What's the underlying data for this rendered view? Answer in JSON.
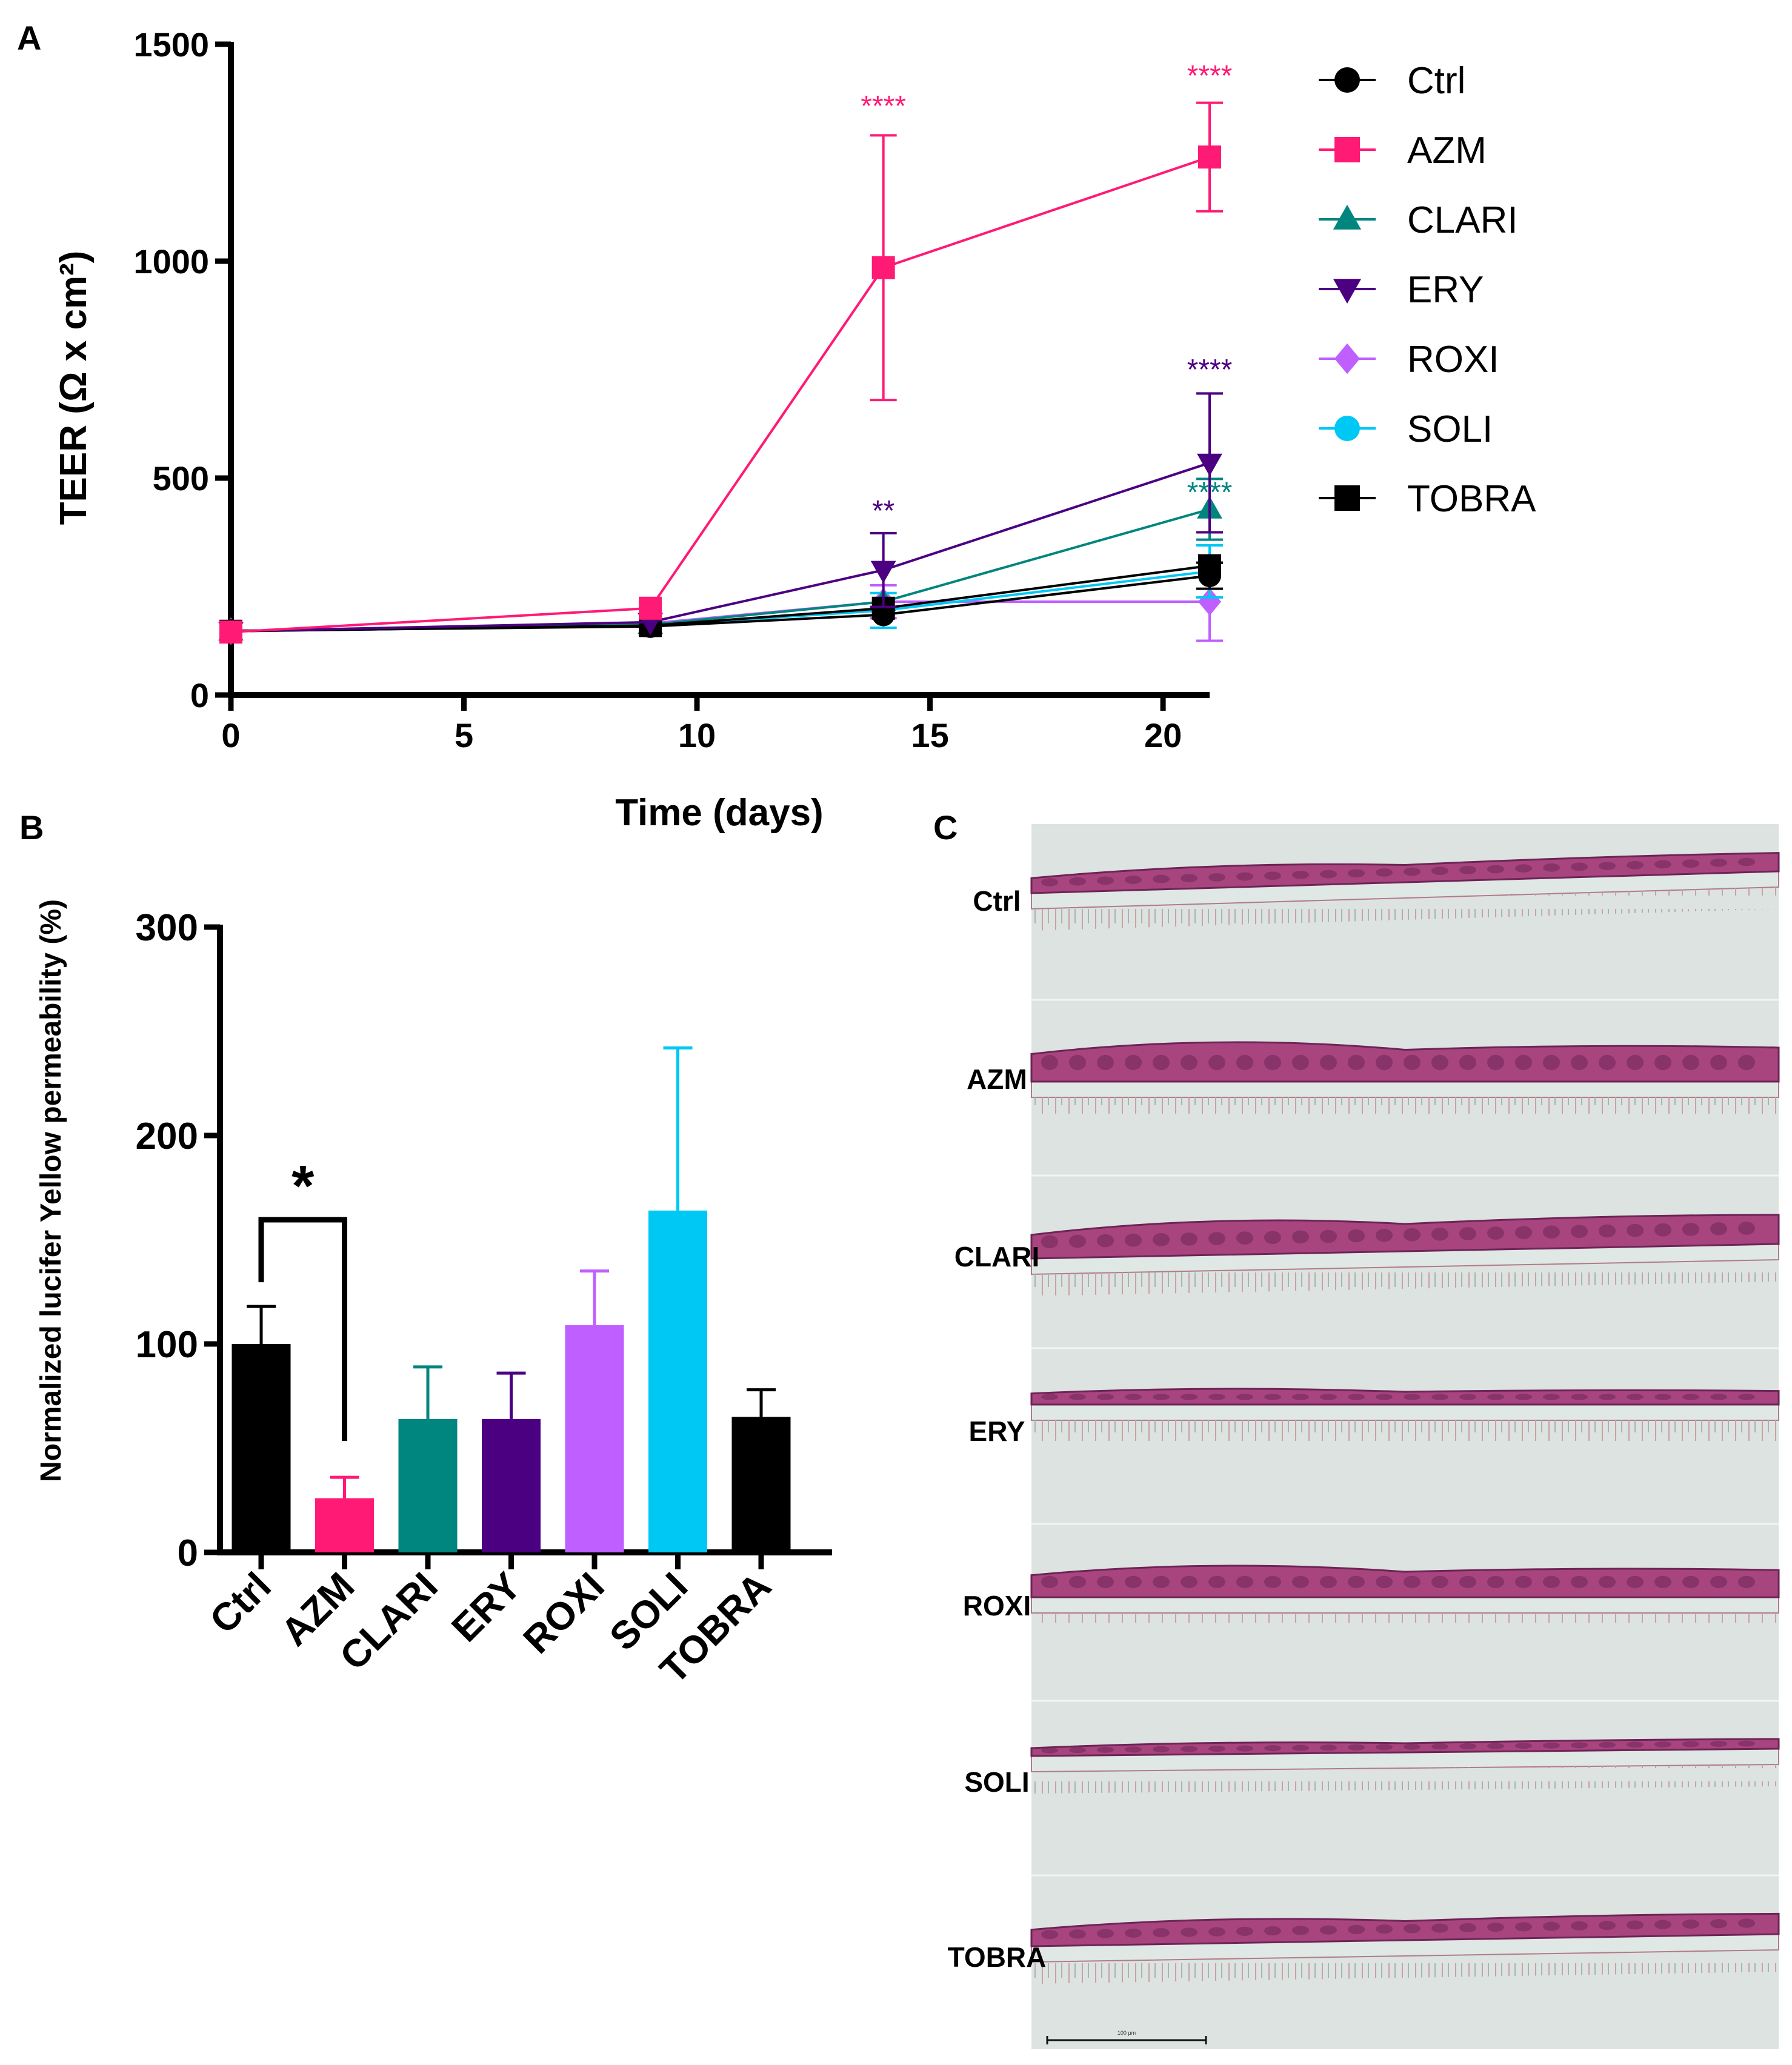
{
  "colors": {
    "ctrl": "#000000",
    "azm": "#ff1a75",
    "clari": "#00857f",
    "ery": "#4b0082",
    "roxi": "#bf5fff",
    "soli": "#00c8f5",
    "tobra": "#000000",
    "tissue": "#a8457e",
    "tissue_dark": "#6e2457",
    "membrane": "#dfe8e4",
    "histo_bg": "#dce3e0"
  },
  "panel_a": {
    "label": "A",
    "chart_data": {
      "type": "line",
      "xlabel": "Time (days)",
      "ylabel": "TEER (Ω x cm²)",
      "xlim": [
        0,
        21
      ],
      "ylim": [
        0,
        1500
      ],
      "xticks": [
        0,
        5,
        10,
        15,
        20
      ],
      "yticks": [
        0,
        500,
        1000,
        1500
      ],
      "x": [
        0,
        9,
        14,
        21
      ],
      "series": [
        {
          "name": "Ctrl",
          "key": "ctrl",
          "marker": "circle",
          "values": [
            148,
            158,
            185,
            275
          ],
          "err": [
            0,
            0,
            0,
            30
          ]
        },
        {
          "name": "AZM",
          "key": "azm",
          "marker": "square",
          "values": [
            145,
            200,
            985,
            1240
          ],
          "err": [
            0,
            0,
            305,
            125
          ]
        },
        {
          "name": "CLARI",
          "key": "clari",
          "marker": "triangle-up",
          "values": [
            147,
            162,
            215,
            428
          ],
          "err": [
            0,
            0,
            0,
            70
          ]
        },
        {
          "name": "ERY",
          "key": "ery",
          "marker": "triangle-down",
          "values": [
            147,
            168,
            288,
            535
          ],
          "err": [
            0,
            0,
            85,
            160
          ]
        },
        {
          "name": "ROXI",
          "key": "roxi",
          "marker": "diamond",
          "values": [
            147,
            165,
            215,
            215
          ],
          "err": [
            0,
            0,
            38,
            90
          ]
        },
        {
          "name": "SOLI",
          "key": "soli",
          "marker": "circle",
          "values": [
            147,
            160,
            195,
            285
          ],
          "err": [
            0,
            0,
            40,
            60
          ]
        },
        {
          "name": "TOBRA",
          "key": "tobra",
          "marker": "square",
          "values": [
            147,
            160,
            200,
            298
          ],
          "err": [
            0,
            0,
            0,
            0
          ]
        }
      ],
      "annotations": [
        {
          "text": "****",
          "key": "azm",
          "x": 14,
          "y": 1335
        },
        {
          "text": "****",
          "key": "azm",
          "x": 21,
          "y": 1405
        },
        {
          "text": "**",
          "key": "ery",
          "x": 14,
          "y": 402
        },
        {
          "text": "****",
          "key": "ery",
          "x": 21,
          "y": 728
        },
        {
          "text": "****",
          "key": "clari",
          "x": 21,
          "y": 445
        }
      ],
      "legend_position": "right"
    }
  },
  "panel_b": {
    "label": "B",
    "chart_data": {
      "type": "bar",
      "categories": [
        "Ctrl",
        "AZM",
        "CLARI",
        "ERY",
        "ROXI",
        "SOLI",
        "TOBRA"
      ],
      "keys": [
        "ctrl",
        "azm",
        "clari",
        "ery",
        "roxi",
        "soli",
        "tobra"
      ],
      "values": [
        100,
        26,
        64,
        64,
        109,
        164,
        65
      ],
      "err": [
        18,
        10,
        25,
        22,
        26,
        78,
        13
      ],
      "ylabel": "Normalized lucifer Yellow permeability (%)",
      "ylim": [
        0,
        300
      ],
      "yticks": [
        0,
        100,
        200,
        300
      ],
      "significance": {
        "text": "*",
        "from": "Ctrl",
        "to": "AZM"
      }
    }
  },
  "panel_c": {
    "label": "C",
    "rows": [
      "Ctrl",
      "AZM",
      "CLARI",
      "ERY",
      "ROXI",
      "SOLI",
      "TOBRA"
    ],
    "scale_label": "100 μm"
  }
}
